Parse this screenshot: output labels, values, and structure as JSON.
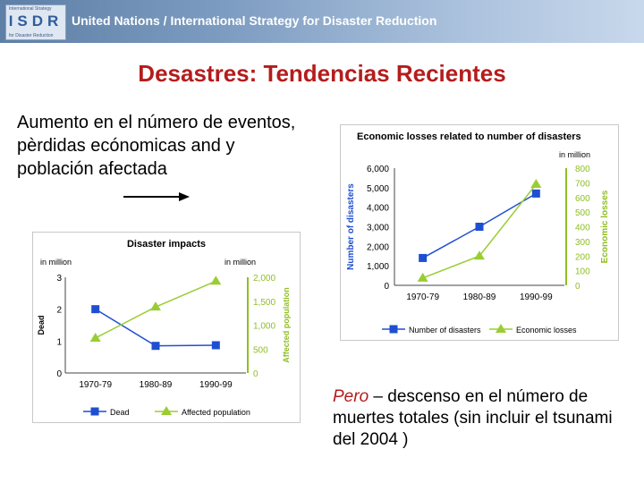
{
  "header": {
    "logo_text": "ISDR",
    "logo_small_top": "International Strategy",
    "logo_small_bottom": "for Disaster Reduction",
    "banner_title": "United Nations / International Strategy for Disaster Reduction"
  },
  "slide": {
    "title": "Desastres: Tendencias Recientes",
    "intro": "Aumento en el número de eventos, pèrdidas ecónomicas and  y población afectada",
    "pero_em": "Pero",
    "pero_rest": " – descenso en el número de muertes totales (sin incluir el tsunami del 2004 )"
  },
  "colors": {
    "title_red": "#b51c1c",
    "series_blue": "#1f4fd1",
    "series_green": "#9acd32",
    "axis_green": "#8fbf22",
    "banner_blue": "#7d9cc1"
  },
  "chart_data": [
    {
      "type": "line",
      "title": "Disaster impacts",
      "categories": [
        "1970-79",
        "1980-89",
        "1990-99"
      ],
      "y_left": {
        "label": "Dead",
        "unit": "in million",
        "ticks": [
          "0",
          "1",
          "2",
          "3"
        ],
        "range": [
          0,
          3
        ]
      },
      "y_right": {
        "label": "Affected population",
        "unit": "in million",
        "ticks": [
          "0",
          "500",
          "1,000",
          "1,500",
          "2,000"
        ],
        "range": [
          0,
          2000
        ]
      },
      "series": [
        {
          "name": "Dead",
          "axis": "left",
          "values": [
            2.0,
            0.85,
            0.87
          ],
          "color": "#1f4fd1",
          "marker": "square"
        },
        {
          "name": "Affected population",
          "axis": "right",
          "values": [
            730,
            1380,
            1920
          ],
          "color": "#9acd32",
          "marker": "triangle"
        }
      ],
      "legend": "bottom"
    },
    {
      "type": "line",
      "title": "Economic losses related to number of disasters",
      "categories": [
        "1970-79",
        "1980-89",
        "1990-99"
      ],
      "y_left": {
        "label": "Number of disasters",
        "unit": "",
        "ticks": [
          "0",
          "1,000",
          "2,000",
          "3,000",
          "4,000",
          "5,000",
          "6,000"
        ],
        "range": [
          0,
          6000
        ]
      },
      "y_right": {
        "label": "Economic losses",
        "unit": "in million",
        "ticks": [
          "0",
          "100",
          "200",
          "300",
          "400",
          "500",
          "600",
          "700",
          "800"
        ],
        "range": [
          0,
          800
        ]
      },
      "series": [
        {
          "name": "Number of disasters",
          "axis": "left",
          "values": [
            1400,
            3000,
            4700
          ],
          "color": "#1f4fd1",
          "marker": "square"
        },
        {
          "name": "Economic losses",
          "axis": "right",
          "values": [
            50,
            200,
            690
          ],
          "color": "#9acd32",
          "marker": "triangle"
        }
      ],
      "legend": "bottom"
    }
  ]
}
